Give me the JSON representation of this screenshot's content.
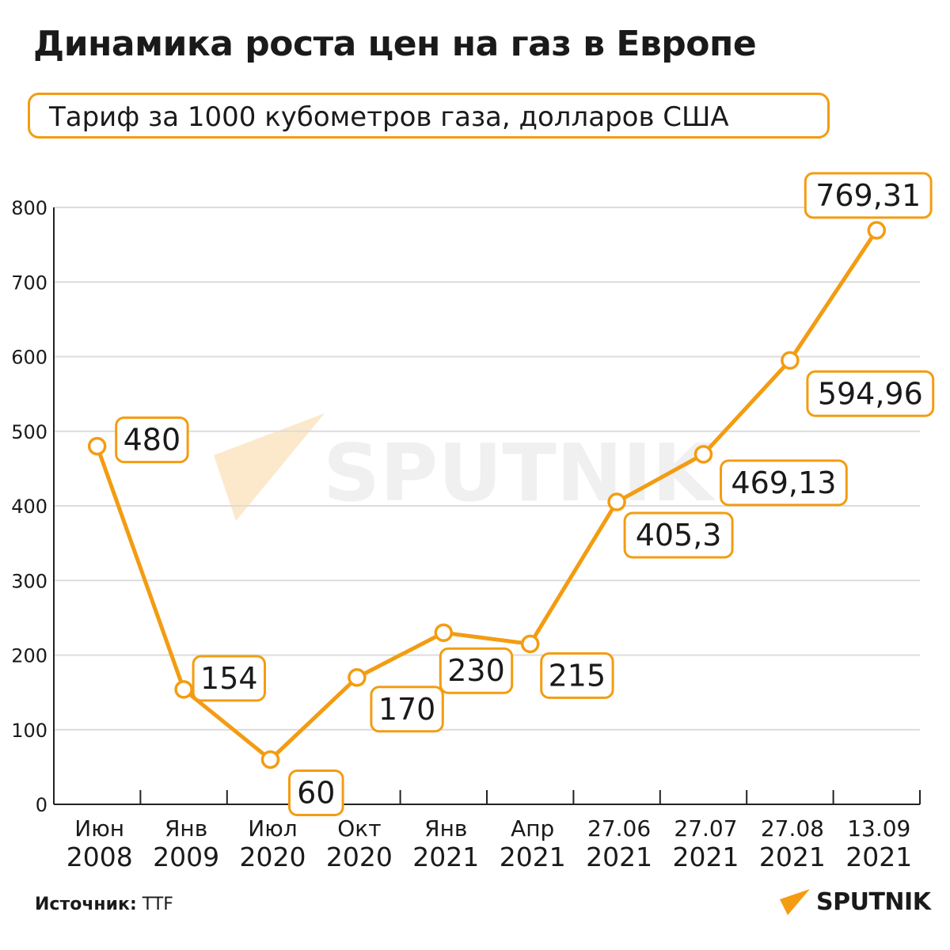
{
  "title": "Динамика роста цен на газ в Европе",
  "subtitle": "Тариф за 1000 кубометров газа, долларов США",
  "source_label": "Источник:",
  "source_value": "TTF",
  "brand": "SPUTNIK",
  "watermark": "SPUTNIK",
  "colors": {
    "accent": "#f39c12",
    "grid": "#dcdcdc",
    "axis": "#222222",
    "text": "#1a1a1a"
  },
  "chart_data": {
    "type": "line",
    "categories": [
      [
        "Июн",
        "2008"
      ],
      [
        "Янв",
        "2009"
      ],
      [
        "Июл",
        "2020"
      ],
      [
        "Окт",
        "2020"
      ],
      [
        "Янв",
        "2021"
      ],
      [
        "Апр",
        "2021"
      ],
      [
        "27.06",
        "2021"
      ],
      [
        "27.07",
        "2021"
      ],
      [
        "27.08",
        "2021"
      ],
      [
        "13.09",
        "2021"
      ]
    ],
    "values": [
      480,
      154,
      60,
      170,
      230,
      215,
      405.3,
      469.13,
      594.96,
      769.31
    ],
    "labels": [
      "480",
      "154",
      "60",
      "170",
      "230",
      "215",
      "405,3",
      "469,13",
      "594,96",
      "769,31"
    ],
    "yticks": [
      0,
      100,
      200,
      300,
      400,
      500,
      600,
      700,
      800
    ],
    "ylim": [
      0,
      800
    ],
    "grid": true
  }
}
